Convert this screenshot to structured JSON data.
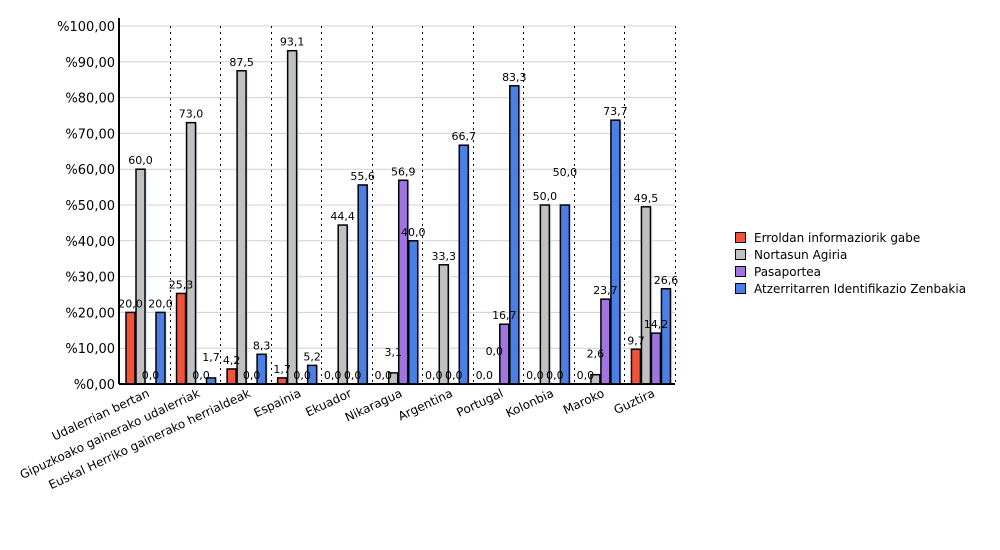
{
  "chart_data": {
    "type": "bar",
    "title": "",
    "xlabel": "",
    "ylabel": "",
    "ylim": [
      0,
      100
    ],
    "y_ticks": [
      "%0,00",
      "%10,00",
      "%20,00",
      "%30,00",
      "%40,00",
      "%50,00",
      "%60,00",
      "%70,00",
      "%80,00",
      "%90,00",
      "%100,00"
    ],
    "grid": true,
    "legend_position": "right",
    "categories": [
      "Udalerrian bertan",
      "Gipuzkoako gainerako udalerriak",
      "Euskal Herriko gainerako herrialdeak",
      "Espainia",
      "Ekuador",
      "Nikaragua",
      "Argentina",
      "Portugal",
      "Kolonbia",
      "Maroko",
      "Guztira"
    ],
    "series": [
      {
        "name": "Erroldan informaziorik gabe",
        "color": "#f4533a",
        "values": [
          20.0,
          25.3,
          4.2,
          1.7,
          0.0,
          0.0,
          0.0,
          0.0,
          0.0,
          0.0,
          9.7
        ]
      },
      {
        "name": "Nortasun Agiria",
        "color": "#c0c0c0",
        "values": [
          60.0,
          73.0,
          87.5,
          93.1,
          44.4,
          3.1,
          33.3,
          0.0,
          50.0,
          2.6,
          49.5
        ]
      },
      {
        "name": "Pasaportea",
        "color": "#a175e0",
        "values": [
          0.0,
          0.0,
          0.0,
          0.0,
          0.0,
          56.9,
          0.0,
          16.7,
          0.0,
          23.7,
          14.2
        ]
      },
      {
        "name": "Atzerritarren Identifikazio Zenbakia",
        "color": "#4a80e6",
        "values": [
          20.0,
          1.7,
          8.3,
          5.2,
          55.6,
          40.0,
          66.7,
          83.3,
          50.0,
          73.7,
          26.6
        ]
      }
    ]
  }
}
